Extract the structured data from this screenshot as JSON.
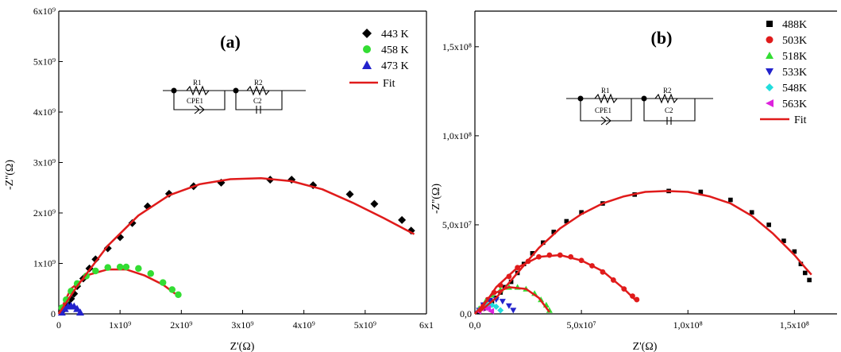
{
  "chart_data": [
    {
      "type": "scatter",
      "panel_label": "(a)",
      "xlabel": "Z'(Ω)",
      "ylabel": "-Z''(Ω)",
      "xlim": [
        0,
        6000000000.0
      ],
      "ylim": [
        0,
        6000000000.0
      ],
      "x_tick_labels": [
        "0",
        "1x10⁹",
        "2x10⁹",
        "3x10⁹",
        "4x10⁹",
        "5x10⁹",
        "6x1"
      ],
      "x_tick_values": [
        0,
        1000000000.0,
        2000000000.0,
        3000000000.0,
        4000000000.0,
        5000000000.0,
        6000000000.0
      ],
      "y_tick_labels": [
        "0",
        "1x10⁹",
        "2x10⁹",
        "3x10⁹",
        "4x10⁹",
        "5x10⁹",
        "6x10⁹"
      ],
      "y_tick_values": [
        0,
        1000000000.0,
        2000000000.0,
        3000000000.0,
        4000000000.0,
        5000000000.0,
        6000000000.0
      ],
      "legend_position": "top-right",
      "circuit_labels": [
        "R1",
        "R2",
        "CPE1",
        "C2"
      ],
      "series": [
        {
          "name": "443 K",
          "marker": "diamond",
          "color": "#000000",
          "x": [
            50000000.0,
            100000000.0,
            150000000.0,
            200000000.0,
            250000000.0,
            300000000.0,
            400000000.0,
            500000000.0,
            600000000.0,
            800000000.0,
            1000000000.0,
            1200000000.0,
            1450000000.0,
            1800000000.0,
            2200000000.0,
            2650000000.0,
            3450000000.0,
            3800000000.0,
            4150000000.0,
            4750000000.0,
            5150000000.0,
            5600000000.0,
            5750000000.0
          ],
          "y": [
            50000000.0,
            120000000.0,
            200000000.0,
            300000000.0,
            400000000.0,
            550000000.0,
            700000000.0,
            900000000.0,
            1080000000.0,
            1300000000.0,
            1520000000.0,
            1800000000.0,
            2130000000.0,
            2380000000.0,
            2530000000.0,
            2600000000.0,
            2660000000.0,
            2660000000.0,
            2550000000.0,
            2370000000.0,
            2180000000.0,
            1860000000.0,
            1650000000.0
          ]
        },
        {
          "name": "458 K",
          "marker": "circle",
          "color": "#33dd33",
          "x": [
            50000000.0,
            120000000.0,
            200000000.0,
            300000000.0,
            450000000.0,
            600000000.0,
            800000000.0,
            1000000000.0,
            1100000000.0,
            1300000000.0,
            1500000000.0,
            1700000000.0,
            1850000000.0,
            1950000000.0
          ],
          "y": [
            120000000.0,
            280000000.0,
            450000000.0,
            600000000.0,
            750000000.0,
            850000000.0,
            920000000.0,
            930000000.0,
            930000000.0,
            900000000.0,
            800000000.0,
            620000000.0,
            480000000.0,
            380000000.0
          ],
          "fit_x": [
            0.0,
            200000000.0,
            500000000.0,
            800000000.0,
            1100000000.0,
            1400000000.0,
            1700000000.0,
            1900000000.0
          ],
          "fit_y": [
            0.0,
            500000000.0,
            780000000.0,
            880000000.0,
            880000000.0,
            760000000.0,
            580000000.0,
            400000000.0
          ]
        },
        {
          "name": "473 K",
          "marker": "triangle-up",
          "color": "#2222cc",
          "x": [
            50000000.0,
            100000000.0,
            150000000.0,
            200000000.0,
            250000000.0,
            300000000.0,
            350000000.0
          ],
          "y": [
            30000000.0,
            100000000.0,
            150000000.0,
            160000000.0,
            150000000.0,
            100000000.0,
            30000000.0
          ]
        },
        {
          "name": "Fit",
          "line": true,
          "color": "#e01b1b",
          "x": [
            0.0,
            300000000.0,
            800000000.0,
            1300000000.0,
            1800000000.0,
            2300000000.0,
            2800000000.0,
            3300000000.0,
            3800000000.0,
            4300000000.0,
            4800000000.0,
            5300000000.0,
            5800000000.0
          ],
          "y": [
            0.0,
            550000000.0,
            1350000000.0,
            1950000000.0,
            2350000000.0,
            2570000000.0,
            2670000000.0,
            2690000000.0,
            2630000000.0,
            2470000000.0,
            2200000000.0,
            1900000000.0,
            1580000000.0
          ]
        }
      ]
    },
    {
      "type": "scatter",
      "panel_label": "(b)",
      "xlabel": "Z'(Ω)",
      "ylabel": "-Z''(Ω)",
      "xlim": [
        0,
        170000000.0
      ],
      "ylim": [
        0,
        170000000.0
      ],
      "x_tick_labels": [
        "0,0",
        "5,0x10⁷",
        "1,0x10⁸",
        "1,5x10⁸"
      ],
      "x_tick_values": [
        0,
        50000000.0,
        100000000.0,
        150000000.0
      ],
      "y_tick_labels": [
        "0,0",
        "5,0x10⁷",
        "1,0x10⁸",
        "1,5x10⁸"
      ],
      "y_tick_values": [
        0,
        50000000.0,
        100000000.0,
        150000000.0
      ],
      "legend_position": "top-right",
      "circuit_labels": [
        "R1",
        "R2",
        "CPE1",
        "C2"
      ],
      "series": [
        {
          "name": "488K",
          "marker": "square",
          "color": "#000000",
          "x": [
            2000000.0,
            4000000.0,
            6000000.0,
            8000000.0,
            10000000.0,
            12000000.0,
            14000000.0,
            17000000.0,
            20000000.0,
            23000000.0,
            27000000.0,
            32000000.0,
            37000000.0,
            43000000.0,
            50000000.0,
            60000000.0,
            75000000.0,
            91000000.0,
            106000000.0,
            120000000.0,
            130000000.0,
            138000000.0,
            145000000.0,
            150000000.0,
            153000000.0,
            155000000.0,
            157000000.0
          ],
          "y": [
            1000000.0,
            3000000.0,
            5000000.0,
            7000000.0,
            9000000.0,
            12000000.0,
            15000000.0,
            18000000.0,
            23000000.0,
            28000000.0,
            34000000.0,
            40000000.0,
            46000000.0,
            52000000.0,
            57000000.0,
            62000000.0,
            67000000.0,
            69000000.0,
            68500000.0,
            64000000.0,
            57000000.0,
            50000000.0,
            41000000.0,
            35000000.0,
            28000000.0,
            23000000.0,
            19000000.0
          ]
        },
        {
          "name": "503K",
          "marker": "circle",
          "color": "#e01b1b",
          "x": [
            2000000.0,
            4000000.0,
            6000000.0,
            9000000.0,
            12000000.0,
            16000000.0,
            20000000.0,
            25000000.0,
            30000000.0,
            35000000.0,
            40000000.0,
            45000000.0,
            50000000.0,
            55000000.0,
            60000000.0,
            65000000.0,
            70000000.0,
            74000000.0,
            76000000.0
          ],
          "y": [
            2000000.0,
            5000000.0,
            8000000.0,
            12000000.0,
            16000000.0,
            21000000.0,
            26000000.0,
            29500000.0,
            32000000.0,
            33000000.0,
            33000000.0,
            32000000.0,
            30000000.0,
            27000000.0,
            23500000.0,
            19000000.0,
            14000000.0,
            10000000.0,
            8000000.0
          ]
        },
        {
          "name": "518K",
          "marker": "triangle-up",
          "color": "#33dd33",
          "x": [
            2000000.0,
            5000000.0,
            8000000.0,
            12000000.0,
            16000000.0,
            20000000.0,
            24000000.0,
            28000000.0,
            31000000.0,
            33500000.0,
            35000000.0
          ],
          "y": [
            3000000.0,
            7000000.0,
            10500000.0,
            13500000.0,
            15000000.0,
            15000000.0,
            14000000.0,
            11500000.0,
            8000000.0,
            5000000.0,
            2000000.0
          ]
        },
        {
          "name": "533K",
          "marker": "triangle-down",
          "color": "#2222cc",
          "x": [
            2000000.0,
            4000000.0,
            7000000.0,
            10000000.0,
            13000000.0,
            16000000.0,
            18000000.0
          ],
          "y": [
            2000000.0,
            5000000.0,
            7500000.0,
            8000000.0,
            7000000.0,
            4500000.0,
            2000000.0
          ]
        },
        {
          "name": "548K",
          "marker": "diamond",
          "color": "#22dddd",
          "x": [
            2000000.0,
            4000000.0,
            6000000.0,
            8000000.0,
            10000000.0,
            12000000.0
          ],
          "y": [
            2000000.0,
            4000000.0,
            5000000.0,
            5000000.0,
            4000000.0,
            2000000.0
          ]
        },
        {
          "name": "563K",
          "marker": "triangle-left",
          "color": "#dd22dd",
          "x": [
            1500000.0,
            3000000.0,
            4500000.0,
            6000000.0,
            7500000.0
          ],
          "y": [
            1500000.0,
            3000000.0,
            3400000.0,
            3000000.0,
            1500000.0
          ]
        },
        {
          "name": "Fit",
          "line": true,
          "color": "#e01b1b",
          "x": [
            2000000.0,
            10000000.0,
            20000000.0,
            30000000.0,
            40000000.0,
            50000000.0,
            60000000.0,
            70000000.0,
            80000000.0,
            90000000.0,
            100000000.0,
            110000000.0,
            120000000.0,
            130000000.0,
            140000000.0,
            150000000.0,
            155000000.0,
            158000000.0
          ],
          "y": [
            1000000.0,
            9000000.0,
            23000000.0,
            37000000.0,
            48000000.0,
            56000000.0,
            62000000.0,
            66000000.0,
            68500000.0,
            69000000.0,
            68500000.0,
            66000000.0,
            62000000.0,
            55000000.0,
            45000000.0,
            33000000.0,
            26000000.0,
            22000000.0
          ]
        },
        {
          "name": "Fit 503K",
          "line": true,
          "color": "#e01b1b",
          "x": [
            2000000.0,
            10000000.0,
            20000000.0,
            30000000.0,
            40000000.0,
            50000000.0,
            60000000.0,
            70000000.0,
            76000000.0
          ],
          "y": [
            1000000.0,
            15000000.0,
            26000000.0,
            32000000.0,
            33000000.0,
            30000000.0,
            24000000.0,
            14000000.0,
            7000000.0
          ]
        },
        {
          "name": "Fit 518K",
          "line": true,
          "color": "#e01b1b",
          "x": [
            0,
            8000000.0,
            16000000.0,
            24000000.0,
            30000000.0,
            35000000.0
          ],
          "y": [
            0,
            11000000.0,
            15000000.0,
            14000000.0,
            9000000.0,
            1000000.0
          ]
        }
      ]
    }
  ]
}
